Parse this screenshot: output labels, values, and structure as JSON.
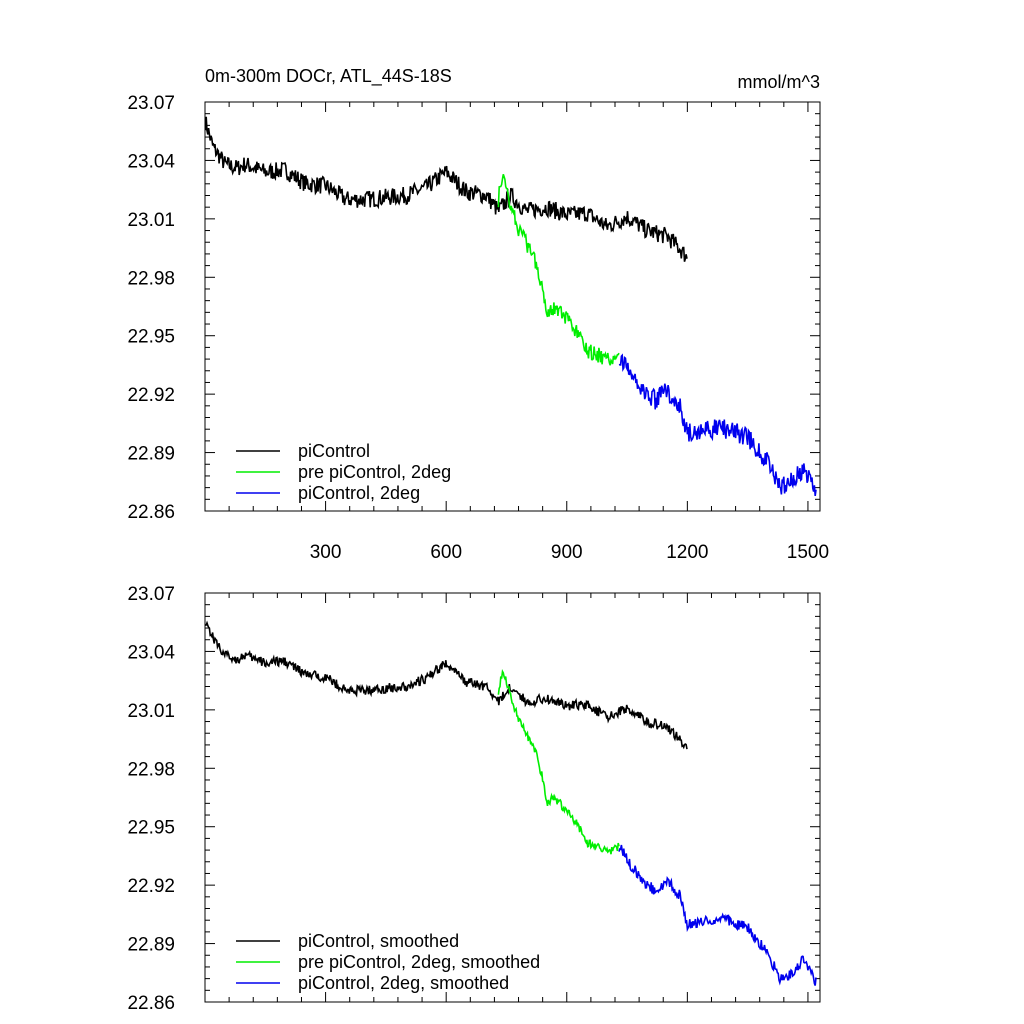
{
  "chart_data": [
    {
      "type": "line",
      "title": "0m-300m DOCr, ATL_44S-18S",
      "units": "mmol/m^3",
      "xlim": [
        0,
        1530
      ],
      "ylim": [
        22.86,
        23.07
      ],
      "xticks": [
        "300",
        "600",
        "900",
        "1200",
        "1500"
      ],
      "yticks": [
        "23.07",
        "23.04",
        "23.01",
        "22.98",
        "22.95",
        "22.92",
        "22.89",
        "22.86"
      ],
      "series": [
        {
          "name": "piControl",
          "color": "#000000",
          "x": [
            1,
            20,
            50,
            80,
            100,
            150,
            200,
            250,
            300,
            350,
            400,
            450,
            500,
            550,
            600,
            650,
            700,
            730,
            760,
            800,
            850,
            900,
            950,
            1000,
            1050,
            1100,
            1150,
            1180,
            1200
          ],
          "y": [
            23.06,
            23.047,
            23.038,
            23.036,
            23.038,
            23.034,
            23.035,
            23.028,
            23.027,
            23.02,
            23.02,
            23.021,
            23.022,
            23.026,
            23.034,
            23.024,
            23.022,
            23.014,
            23.022,
            23.014,
            23.016,
            23.012,
            23.013,
            23.006,
            23.011,
            23.004,
            23.001,
            22.995,
            22.99
          ],
          "noise": 0.0045
        },
        {
          "name": "pre piControl, 2deg",
          "color": "#00ee00",
          "x": [
            730,
            740,
            760,
            780,
            800,
            820,
            840,
            850,
            870,
            900,
            930,
            950,
            980,
            1000,
            1030
          ],
          "y": [
            23.02,
            23.032,
            23.018,
            23.005,
            22.997,
            22.99,
            22.975,
            22.962,
            22.965,
            22.958,
            22.95,
            22.942,
            22.94,
            22.937,
            22.94
          ],
          "noise": 0.004
        },
        {
          "name": "piControl, 2deg",
          "color": "#0000ee",
          "x": [
            1030,
            1060,
            1090,
            1120,
            1150,
            1180,
            1200,
            1250,
            1300,
            1350,
            1400,
            1430,
            1460,
            1490,
            1520
          ],
          "y": [
            22.94,
            22.93,
            22.922,
            22.917,
            22.922,
            22.915,
            22.9,
            22.902,
            22.902,
            22.898,
            22.885,
            22.872,
            22.875,
            22.882,
            22.87
          ],
          "noise": 0.005
        }
      ]
    },
    {
      "type": "line",
      "title": "",
      "xlim": [
        0,
        1530
      ],
      "ylim": [
        22.86,
        23.07
      ],
      "yticks": [
        "23.07",
        "23.04",
        "23.01",
        "22.98",
        "22.95",
        "22.92",
        "22.89",
        "22.86"
      ],
      "series": [
        {
          "name": "piControl, smoothed",
          "color": "#000000",
          "x": [
            1,
            20,
            50,
            80,
            100,
            150,
            200,
            250,
            300,
            350,
            400,
            450,
            500,
            550,
            600,
            650,
            700,
            730,
            760,
            800,
            850,
            900,
            950,
            1000,
            1050,
            1100,
            1150,
            1180,
            1200
          ],
          "y": [
            23.056,
            23.047,
            23.038,
            23.036,
            23.038,
            23.034,
            23.035,
            23.028,
            23.027,
            23.02,
            23.02,
            23.021,
            23.022,
            23.026,
            23.034,
            23.024,
            23.022,
            23.014,
            23.022,
            23.014,
            23.016,
            23.012,
            23.013,
            23.006,
            23.011,
            23.004,
            23.001,
            22.995,
            22.991
          ],
          "noise": 0.0025
        },
        {
          "name": "pre piControl, 2deg, smoothed",
          "color": "#00ee00",
          "x": [
            730,
            740,
            760,
            780,
            800,
            820,
            840,
            850,
            870,
            900,
            930,
            950,
            980,
            1000,
            1030
          ],
          "y": [
            23.02,
            23.03,
            23.018,
            23.005,
            22.997,
            22.99,
            22.975,
            22.962,
            22.965,
            22.958,
            22.95,
            22.942,
            22.94,
            22.937,
            22.94
          ],
          "noise": 0.0022
        },
        {
          "name": "piControl, 2deg, smoothed",
          "color": "#0000ee",
          "x": [
            1030,
            1060,
            1090,
            1120,
            1150,
            1180,
            1200,
            1250,
            1300,
            1350,
            1400,
            1430,
            1460,
            1490,
            1520
          ],
          "y": [
            22.94,
            22.93,
            22.922,
            22.917,
            22.922,
            22.915,
            22.9,
            22.902,
            22.902,
            22.898,
            22.885,
            22.872,
            22.875,
            22.882,
            22.87
          ],
          "noise": 0.0028
        }
      ]
    }
  ]
}
